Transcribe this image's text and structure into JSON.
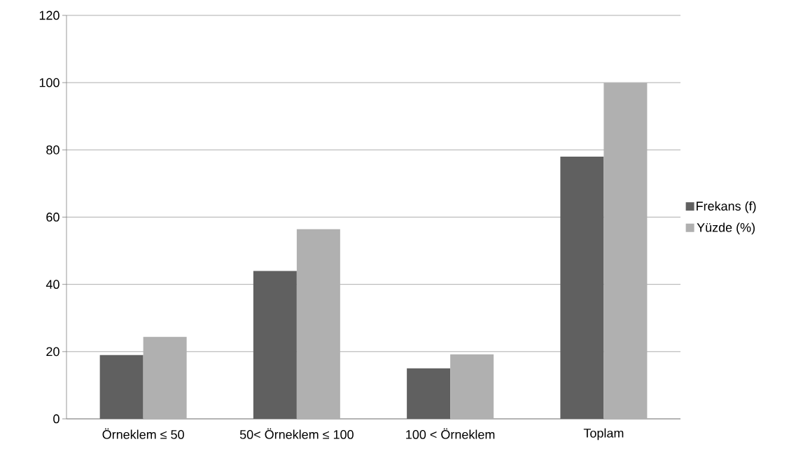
{
  "chart_data": {
    "type": "bar",
    "categories": [
      "Örneklem ≤ 50",
      "50< Örneklem ≤ 100",
      "100 < Örneklem",
      "Toplam"
    ],
    "series": [
      {
        "name": "Frekans (f)",
        "color": "#606060",
        "values": [
          19,
          44,
          15,
          78
        ]
      },
      {
        "name": "Yüzde (%)",
        "color": "#b0b0b0",
        "values": [
          24.4,
          56.4,
          19.2,
          100
        ]
      }
    ],
    "ylim": [
      0,
      120
    ],
    "yticks": [
      0,
      20,
      40,
      60,
      80,
      100,
      120
    ],
    "grid": "y",
    "legend": "right"
  }
}
